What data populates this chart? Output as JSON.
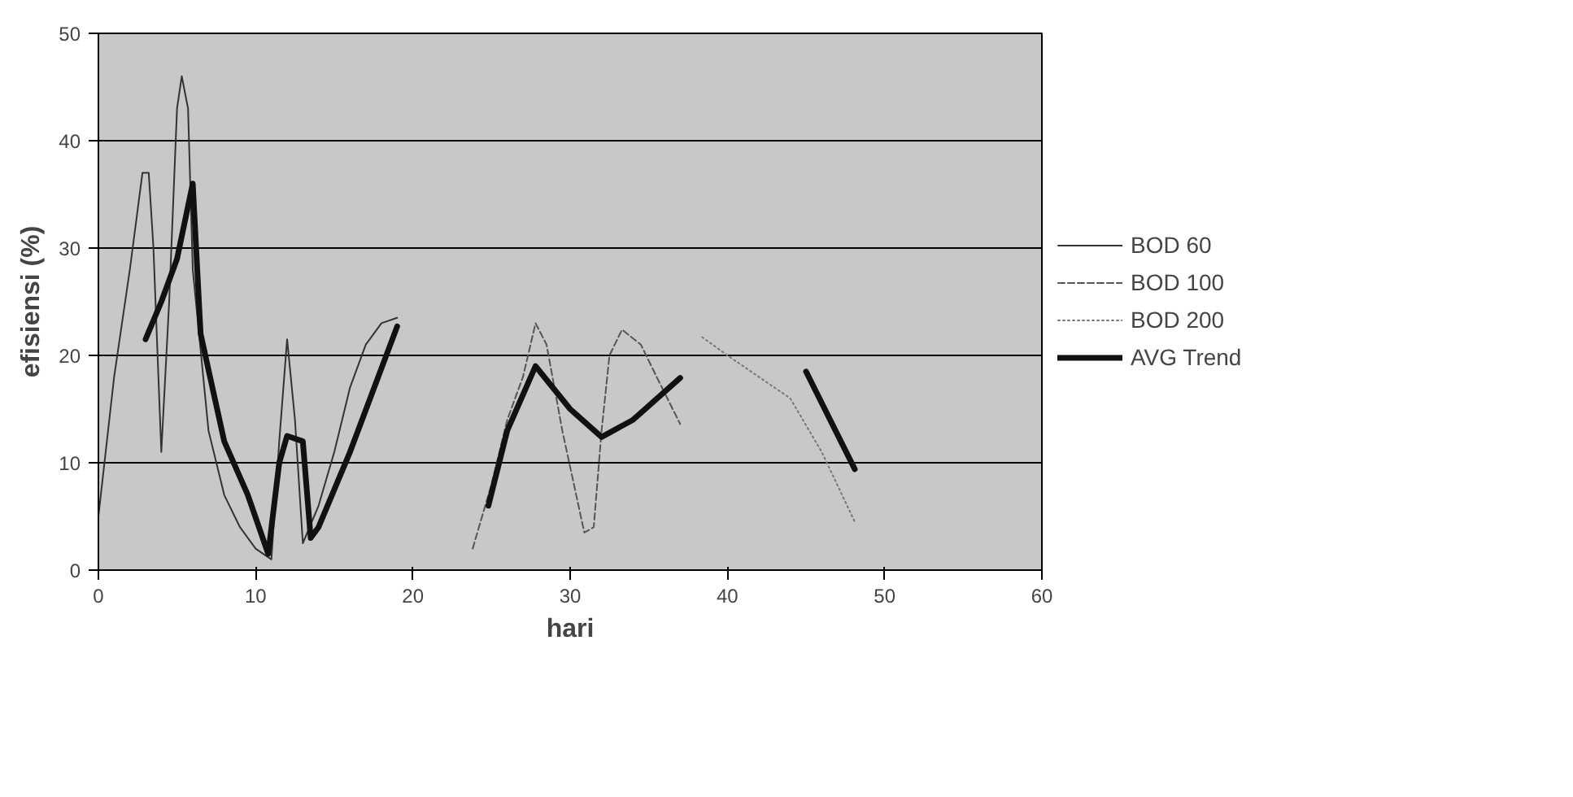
{
  "chart_data": {
    "type": "line",
    "xlabel": "hari",
    "ylabel": "efisiensi (%)",
    "xlim": [
      0,
      60
    ],
    "ylim": [
      0,
      50
    ],
    "xticks": [
      0,
      10,
      20,
      30,
      40,
      50,
      60
    ],
    "yticks": [
      0,
      10,
      20,
      30,
      40,
      50
    ],
    "grid": "y",
    "legend": "right",
    "marker": "none",
    "series": [
      {
        "name": "BOD 60",
        "color": "#333333",
        "line_style": "solid",
        "x": [
          0,
          1,
          2,
          2.8,
          3.2,
          3.5,
          4,
          4.5,
          5,
          5.3,
          5.7,
          6,
          7,
          8,
          9,
          10,
          11,
          11.5,
          12,
          12.5,
          13,
          14,
          15,
          16,
          17,
          18,
          19
        ],
        "values": [
          5,
          18,
          28,
          37,
          37,
          30,
          11,
          25,
          43,
          46,
          43,
          28,
          13,
          7,
          4,
          2,
          1,
          12,
          21.5,
          14,
          2.5,
          6,
          11,
          17,
          21,
          23,
          23.5
        ]
      },
      {
        "name": "BOD 100",
        "color": "#555555",
        "line_style": "dashed",
        "x": [
          23.8,
          25,
          26,
          27,
          27.8,
          28.5,
          29.5,
          30.9,
          31.5,
          32,
          32.5,
          33.3,
          34.5,
          35.5,
          37
        ],
        "values": [
          2,
          8,
          14,
          18,
          23,
          21,
          13,
          3.5,
          4,
          13,
          20,
          22.4,
          21,
          18,
          13.6
        ]
      },
      {
        "name": "BOD 200",
        "color": "#777777",
        "line_style": "dotted",
        "x": [
          38.4,
          40,
          42,
          44,
          46,
          48.1
        ],
        "values": [
          21.7,
          20,
          18,
          16,
          11,
          4.5
        ]
      },
      {
        "name": "AVG Trend",
        "color": "#111111",
        "line_style": "solid",
        "x": [
          3,
          4,
          5,
          6,
          6.5,
          8,
          9.5,
          10.8,
          11.5,
          12,
          13,
          13.5,
          14,
          16,
          19,
          20,
          24.8,
          26,
          27.8,
          30,
          32,
          34,
          37,
          40,
          45,
          48.1
        ],
        "values": [
          21.5,
          25,
          29,
          36,
          22,
          12,
          7,
          1.5,
          10,
          12.5,
          12,
          3,
          4,
          11,
          22.7,
          null,
          6,
          13,
          19,
          15,
          12.4,
          14,
          17.9,
          null,
          18.5,
          9.4
        ]
      }
    ]
  }
}
